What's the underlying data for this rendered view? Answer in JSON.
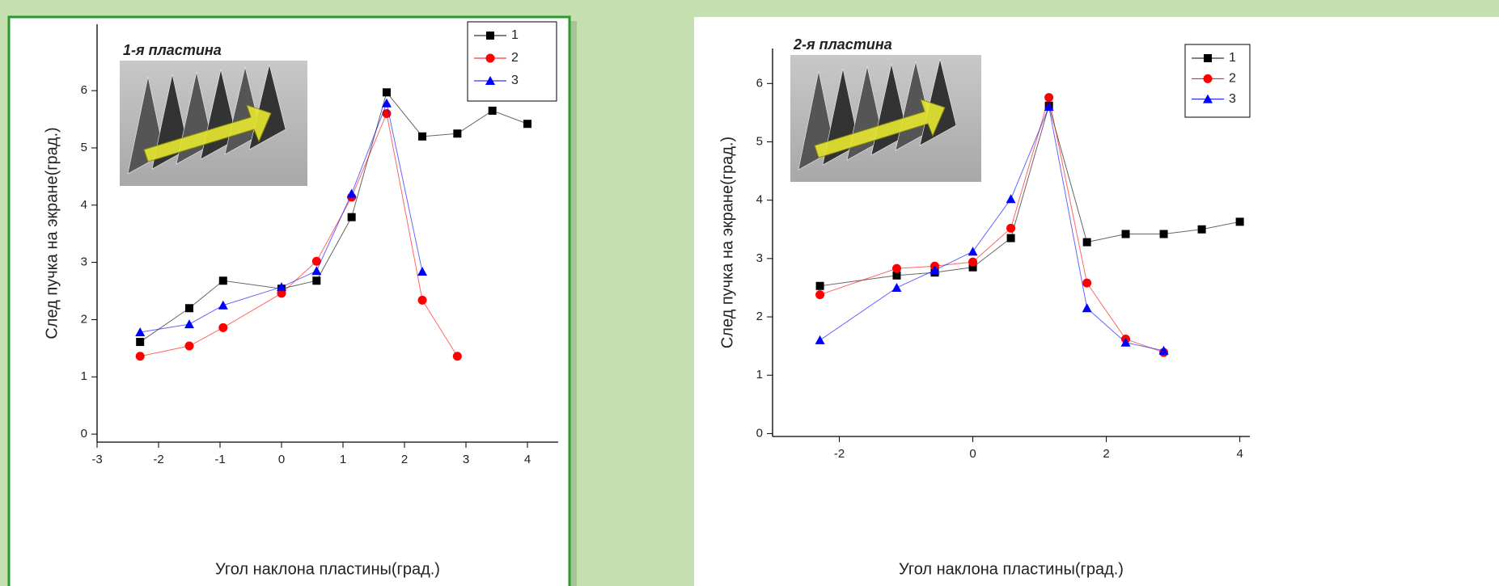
{
  "chart_data": [
    {
      "type": "line",
      "inset_title": "1-я пластина",
      "x_label": "Угол наклона пластины(град.)",
      "y_label": "След пучка на экране(град.)",
      "xlim": [
        -3,
        4.5
      ],
      "ylim": [
        -0.14,
        7.16
      ],
      "xticks": [
        -3,
        -2,
        -1,
        0,
        1,
        2,
        3,
        4
      ],
      "yticks": [
        0,
        1,
        2,
        3,
        4,
        5,
        6
      ],
      "series": [
        {
          "name": "1",
          "color": "#000000",
          "marker": "square",
          "x": [
            -2.3,
            -1.5,
            -0.95,
            0,
            0.57,
            1.14,
            1.71,
            2.29,
            2.86,
            3.43,
            4.0
          ],
          "values": [
            1.61,
            2.2,
            2.68,
            2.54,
            2.68,
            3.79,
            5.97,
            5.2,
            5.25,
            5.65,
            5.42
          ]
        },
        {
          "name": "2",
          "color": "#ff0000",
          "marker": "circle",
          "x": [
            -2.3,
            -1.5,
            -0.95,
            0,
            0.57,
            1.14,
            1.71,
            2.29,
            2.86
          ],
          "values": [
            1.36,
            1.54,
            1.86,
            2.46,
            3.02,
            4.14,
            5.6,
            2.34,
            1.36
          ]
        },
        {
          "name": "3",
          "color": "#0000ff",
          "marker": "triangle",
          "x": [
            -2.3,
            -1.5,
            -0.95,
            0,
            0.57,
            1.14,
            1.71,
            2.29
          ],
          "values": [
            1.78,
            1.92,
            2.25,
            2.57,
            2.85,
            4.2,
            5.78,
            2.84
          ]
        }
      ]
    },
    {
      "type": "line",
      "inset_title": "2-я пластина",
      "x_label": "Угол наклона пластины(град.)",
      "y_label": "След пучка на экране(град.)",
      "xlim": [
        -3,
        4.15
      ],
      "ylim": [
        -0.05,
        6.6
      ],
      "xticks": [
        -2,
        0,
        2,
        4
      ],
      "yticks": [
        0,
        1,
        2,
        3,
        4,
        5,
        6
      ],
      "series": [
        {
          "name": "1",
          "color": "#000000",
          "marker": "square",
          "x": [
            -2.29,
            -1.14,
            -0.57,
            0,
            0.57,
            1.14,
            1.71,
            2.29,
            2.86,
            3.43,
            4.0
          ],
          "values": [
            2.53,
            2.71,
            2.76,
            2.85,
            3.35,
            5.62,
            3.28,
            3.42,
            3.42,
            3.5,
            3.63
          ]
        },
        {
          "name": "2",
          "color": "#ff0000",
          "marker": "circle",
          "x": [
            -2.29,
            -1.14,
            -0.57,
            0,
            0.57,
            1.14,
            1.71,
            2.29,
            2.86
          ],
          "values": [
            2.38,
            2.83,
            2.87,
            2.94,
            3.52,
            5.76,
            2.58,
            1.62,
            1.39
          ]
        },
        {
          "name": "3",
          "color": "#0000ff",
          "marker": "triangle",
          "x": [
            -2.29,
            -1.14,
            -0.57,
            0,
            0.57,
            1.14,
            1.71,
            2.29,
            2.86
          ],
          "values": [
            1.6,
            2.5,
            2.8,
            3.12,
            4.02,
            5.6,
            2.15,
            1.56,
            1.42
          ]
        }
      ]
    }
  ]
}
